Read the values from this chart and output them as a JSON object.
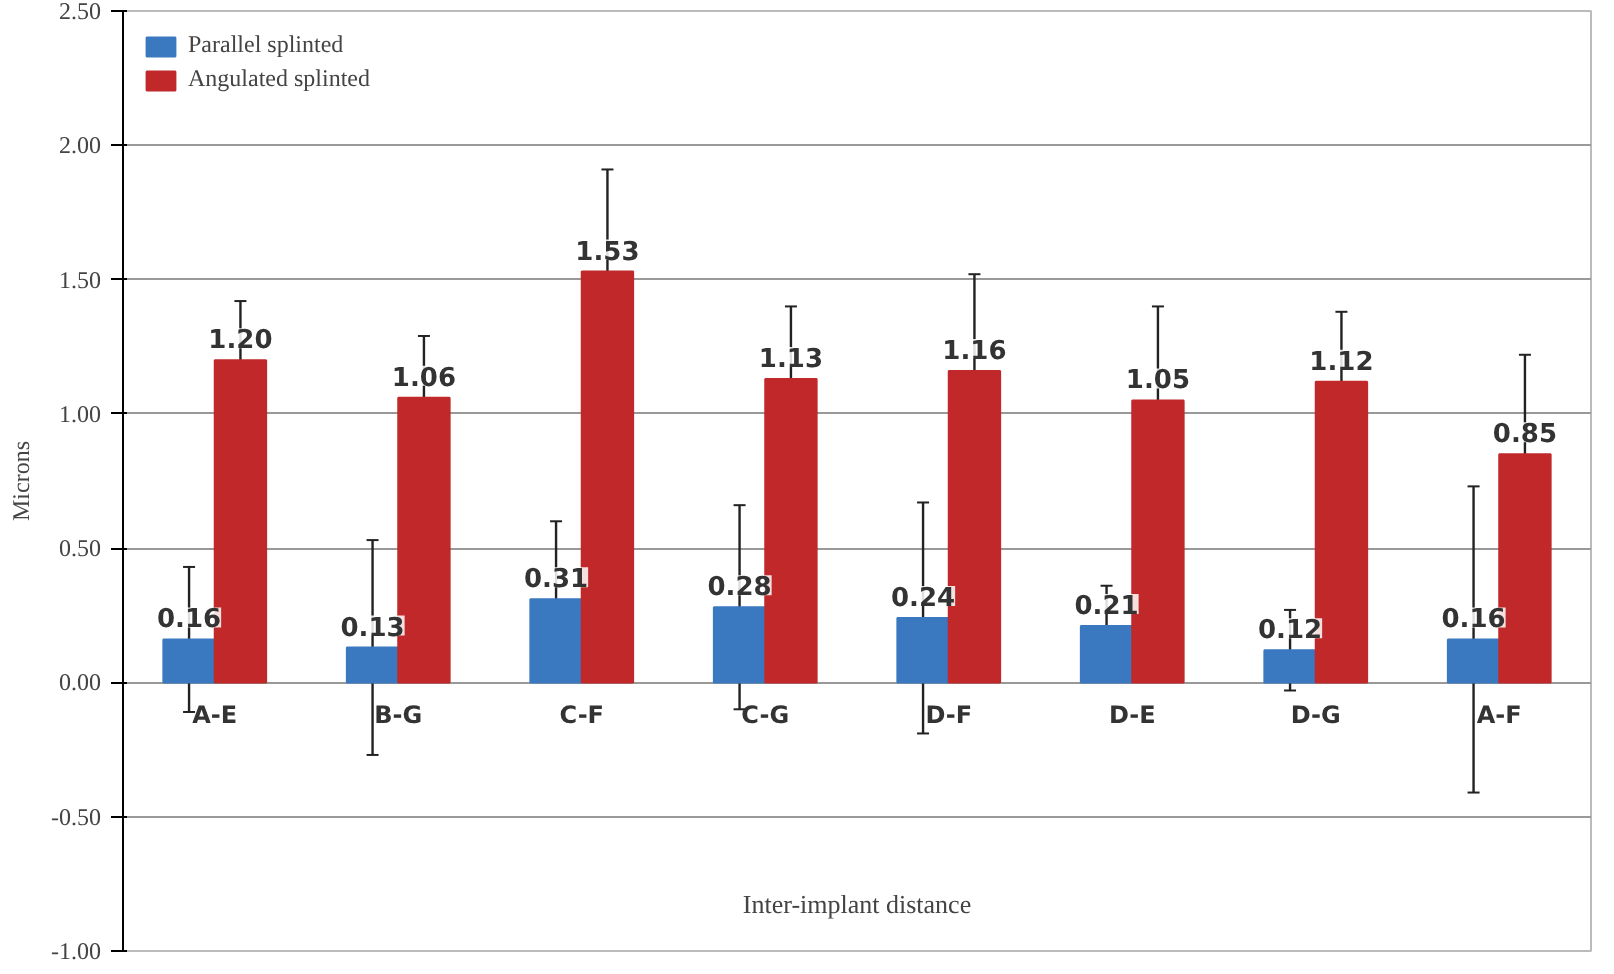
{
  "chart_data": {
    "type": "bar",
    "xlabel": "Inter-implant distance",
    "ylabel": "Microns",
    "categories": [
      "A-E",
      "B-G",
      "C-F",
      "C-G",
      "D-F",
      "D-E",
      "D-G",
      "A-F"
    ],
    "series": [
      {
        "name": "Parallel splinted",
        "color": "#3a78c0",
        "values": [
          0.16,
          0.13,
          0.31,
          0.28,
          0.24,
          0.21,
          0.12,
          0.16
        ],
        "errors": [
          0.27,
          0.4,
          0.29,
          0.38,
          0.43,
          0.15,
          0.15,
          0.57
        ],
        "value_labels": [
          "0.16",
          "0.13",
          "0.31",
          "0.28",
          "0.24",
          "0.21",
          "0.12",
          "0.16"
        ]
      },
      {
        "name": "Angulated splinted",
        "color": "#c0282a",
        "values": [
          1.2,
          1.06,
          1.53,
          1.13,
          1.16,
          1.05,
          1.12,
          0.85
        ],
        "errors": [
          0.22,
          0.23,
          0.38,
          0.27,
          0.36,
          0.35,
          0.26,
          0.37
        ],
        "value_labels": [
          "1.20",
          "1.06",
          "1.53",
          "1.13",
          "1.16",
          "1.05",
          "1.12",
          "0.85"
        ]
      }
    ],
    "ylim": [
      -1.0,
      2.5
    ],
    "yticks": [
      {
        "value": -1.0,
        "label": "-1.00"
      },
      {
        "value": -0.5,
        "label": "-0.50"
      },
      {
        "value": 0,
        "label": "0.00"
      },
      {
        "value": 0.5,
        "label": "0.50"
      },
      {
        "value": 1.0,
        "label": "1.00"
      },
      {
        "value": 1.5,
        "label": "1.50"
      },
      {
        "value": 2.0,
        "label": "2.00"
      },
      {
        "value": 2.5,
        "label": "2.50"
      }
    ],
    "grid": "y",
    "legend": "top left"
  }
}
